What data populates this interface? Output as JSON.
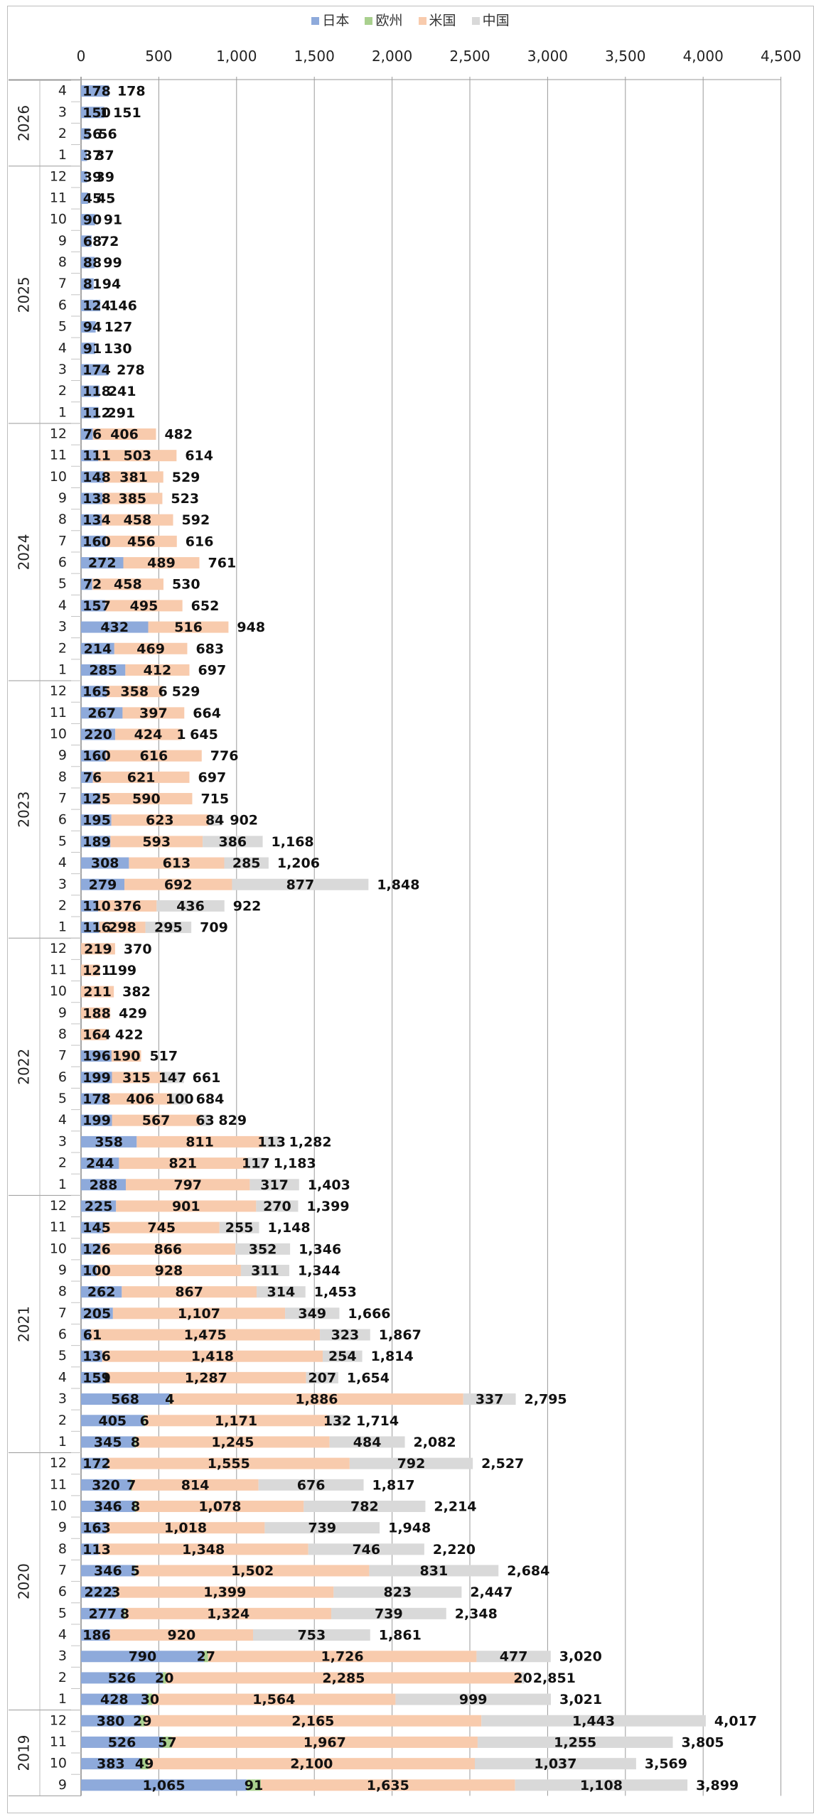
{
  "legend": [
    {
      "name": "日本",
      "color": "#8eaadb"
    },
    {
      "name": "欧州",
      "color": "#a9d08e"
    },
    {
      "name": "米国",
      "color": "#f8cbad"
    },
    {
      "name": "中国",
      "color": "#d9d9d9"
    }
  ],
  "chart_data": {
    "type": "bar",
    "orientation": "horizontal",
    "stacked": true,
    "xlim": [
      0,
      4500
    ],
    "xticks": [
      "0",
      "500",
      "1,000",
      "1,500",
      "2,000",
      "2,500",
      "3,000",
      "3,500",
      "4,000",
      "4,500"
    ],
    "grid": true,
    "legend_position": "top",
    "series_names": [
      "日本",
      "欧州",
      "米国",
      "中国"
    ],
    "years": [
      {
        "year": "2026",
        "rows": [
          {
            "m": "4",
            "jp": 178,
            "eu": null,
            "us": null,
            "cn": null,
            "total": "178"
          },
          {
            "m": "3",
            "jp": 150,
            "eu": null,
            "us": 1,
            "cn": null,
            "total": "151"
          },
          {
            "m": "2",
            "jp": 56,
            "eu": null,
            "us": null,
            "cn": null,
            "total": "56"
          },
          {
            "m": "1",
            "jp": 37,
            "eu": null,
            "us": null,
            "cn": null,
            "total": "37"
          }
        ]
      },
      {
        "year": "2025",
        "rows": [
          {
            "m": "12",
            "jp": 39,
            "eu": null,
            "us": null,
            "cn": null,
            "total": "39"
          },
          {
            "m": "11",
            "jp": 45,
            "eu": null,
            "us": null,
            "cn": null,
            "total": "45"
          },
          {
            "m": "10",
            "jp": 90,
            "eu": null,
            "us": null,
            "cn": null,
            "total": "91"
          },
          {
            "m": "9",
            "jp": 68,
            "eu": null,
            "us": null,
            "cn": null,
            "total": "72"
          },
          {
            "m": "8",
            "jp": 88,
            "eu": null,
            "us": null,
            "cn": null,
            "total": "99"
          },
          {
            "m": "7",
            "jp": 81,
            "eu": null,
            "us": null,
            "cn": null,
            "total": "94"
          },
          {
            "m": "6",
            "jp": 124,
            "eu": null,
            "us": null,
            "cn": null,
            "total": "146"
          },
          {
            "m": "5",
            "jp": 94,
            "eu": null,
            "us": null,
            "cn": null,
            "total": "127"
          },
          {
            "m": "4",
            "jp": 91,
            "eu": null,
            "us": null,
            "cn": null,
            "total": "130"
          },
          {
            "m": "3",
            "jp": 174,
            "eu": null,
            "us": null,
            "cn": null,
            "total": "278"
          },
          {
            "m": "2",
            "jp": 118,
            "eu": null,
            "us": null,
            "cn": null,
            "total": "241"
          },
          {
            "m": "1",
            "jp": 112,
            "eu": null,
            "us": null,
            "cn": null,
            "total": "291"
          }
        ]
      },
      {
        "year": "2024",
        "rows": [
          {
            "m": "12",
            "jp": 76,
            "eu": null,
            "us": 406,
            "cn": null,
            "total": "482"
          },
          {
            "m": "11",
            "jp": 111,
            "eu": null,
            "us": 503,
            "cn": null,
            "total": "614"
          },
          {
            "m": "10",
            "jp": 148,
            "eu": null,
            "us": 381,
            "cn": null,
            "total": "529"
          },
          {
            "m": "9",
            "jp": 138,
            "eu": null,
            "us": 385,
            "cn": null,
            "total": "523"
          },
          {
            "m": "8",
            "jp": 134,
            "eu": null,
            "us": 458,
            "cn": null,
            "total": "592"
          },
          {
            "m": "7",
            "jp": 160,
            "eu": null,
            "us": 456,
            "cn": null,
            "total": "616"
          },
          {
            "m": "6",
            "jp": 272,
            "eu": null,
            "us": 489,
            "cn": null,
            "total": "761"
          },
          {
            "m": "5",
            "jp": 72,
            "eu": null,
            "us": 458,
            "cn": null,
            "total": "530"
          },
          {
            "m": "4",
            "jp": 157,
            "eu": null,
            "us": 495,
            "cn": null,
            "total": "652"
          },
          {
            "m": "3",
            "jp": 432,
            "eu": null,
            "us": 516,
            "cn": null,
            "total": "948"
          },
          {
            "m": "2",
            "jp": 214,
            "eu": null,
            "us": 469,
            "cn": null,
            "total": "683"
          },
          {
            "m": "1",
            "jp": 285,
            "eu": null,
            "us": 412,
            "cn": null,
            "total": "697"
          }
        ]
      },
      {
        "year": "2023",
        "rows": [
          {
            "m": "12",
            "jp": 165,
            "eu": null,
            "us": 358,
            "cn": 6,
            "total": "529"
          },
          {
            "m": "11",
            "jp": 267,
            "eu": null,
            "us": 397,
            "cn": null,
            "total": "664"
          },
          {
            "m": "10",
            "jp": 220,
            "eu": null,
            "us": 424,
            "cn": 1,
            "total": "645"
          },
          {
            "m": "9",
            "jp": 160,
            "eu": null,
            "us": 616,
            "cn": null,
            "total": "776"
          },
          {
            "m": "8",
            "jp": 76,
            "eu": null,
            "us": 621,
            "cn": null,
            "total": "697"
          },
          {
            "m": "7",
            "jp": 125,
            "eu": null,
            "us": 590,
            "cn": null,
            "total": "715"
          },
          {
            "m": "6",
            "jp": 195,
            "eu": null,
            "us": 623,
            "cn": 84,
            "total": "902"
          },
          {
            "m": "5",
            "jp": 189,
            "eu": null,
            "us": 593,
            "cn": 386,
            "total": "1,168"
          },
          {
            "m": "4",
            "jp": 308,
            "eu": null,
            "us": 613,
            "cn": 285,
            "total": "1,206"
          },
          {
            "m": "3",
            "jp": 279,
            "eu": null,
            "us": 692,
            "cn": 877,
            "total": "1,848"
          },
          {
            "m": "2",
            "jp": 110,
            "eu": null,
            "us": 376,
            "cn": 436,
            "total": "922"
          },
          {
            "m": "1",
            "jp": 116,
            "eu": null,
            "us": 298,
            "cn": 295,
            "total": "709"
          }
        ]
      },
      {
        "year": "2022",
        "rows": [
          {
            "m": "12",
            "jp": null,
            "eu": null,
            "us": 219,
            "cn": null,
            "total": "370"
          },
          {
            "m": "11",
            "jp": null,
            "eu": null,
            "us": 121,
            "cn": null,
            "total": "199"
          },
          {
            "m": "10",
            "jp": null,
            "eu": null,
            "us": 211,
            "cn": null,
            "total": "382"
          },
          {
            "m": "9",
            "jp": null,
            "eu": null,
            "us": 188,
            "cn": null,
            "total": "429"
          },
          {
            "m": "8",
            "jp": null,
            "eu": null,
            "us": 164,
            "cn": null,
            "total": "422"
          },
          {
            "m": "7",
            "jp": 196,
            "eu": null,
            "us": 190,
            "cn": null,
            "total": "517"
          },
          {
            "m": "6",
            "jp": 199,
            "eu": null,
            "us": 315,
            "cn": 147,
            "total": "661"
          },
          {
            "m": "5",
            "jp": 178,
            "eu": null,
            "us": 406,
            "cn": 100,
            "total": "684"
          },
          {
            "m": "4",
            "jp": 199,
            "eu": null,
            "us": 567,
            "cn": 63,
            "total": "829"
          },
          {
            "m": "3",
            "jp": 358,
            "eu": null,
            "us": 811,
            "cn": 113,
            "total": "1,282"
          },
          {
            "m": "2",
            "jp": 244,
            "eu": null,
            "us": 821,
            "cn": 117,
            "total": "1,183"
          },
          {
            "m": "1",
            "jp": 288,
            "eu": null,
            "us": 797,
            "cn": 317,
            "total": "1,403"
          }
        ]
      },
      {
        "year": "2021",
        "rows": [
          {
            "m": "12",
            "jp": 225,
            "eu": null,
            "us": 901,
            "cn": 270,
            "total": "1,399"
          },
          {
            "m": "11",
            "jp": 145,
            "eu": null,
            "us": 745,
            "cn": 255,
            "total": "1,148"
          },
          {
            "m": "10",
            "jp": 126,
            "eu": null,
            "us": 866,
            "cn": 352,
            "total": "1,346"
          },
          {
            "m": "9",
            "jp": 100,
            "eu": null,
            "us": 928,
            "cn": 311,
            "total": "1,344"
          },
          {
            "m": "8",
            "jp": 262,
            "eu": null,
            "us": 867,
            "cn": 314,
            "total": "1,453"
          },
          {
            "m": "7",
            "jp": 205,
            "eu": null,
            "us": 1107,
            "cn": 349,
            "total": "1,666"
          },
          {
            "m": "6",
            "jp": 61,
            "eu": null,
            "us": 1475,
            "cn": 323,
            "total": "1,867"
          },
          {
            "m": "5",
            "jp": 136,
            "eu": null,
            "us": 1418,
            "cn": 254,
            "total": "1,814"
          },
          {
            "m": "4",
            "jp": 159,
            "eu": 1,
            "us": 1287,
            "cn": 207,
            "total": "1,654"
          },
          {
            "m": "3",
            "jp": 568,
            "eu": 4,
            "us": 1886,
            "cn": 337,
            "total": "2,795"
          },
          {
            "m": "2",
            "jp": 405,
            "eu": 6,
            "us": 1171,
            "cn": 132,
            "total": "1,714"
          },
          {
            "m": "1",
            "jp": 345,
            "eu": 8,
            "us": 1245,
            "cn": 484,
            "total": "2,082"
          }
        ]
      },
      {
        "year": "2020",
        "rows": [
          {
            "m": "12",
            "jp": 172,
            "eu": null,
            "us": 1555,
            "cn": 792,
            "total": "2,527"
          },
          {
            "m": "11",
            "jp": 320,
            "eu": 7,
            "us": 814,
            "cn": 676,
            "total": "1,817"
          },
          {
            "m": "10",
            "jp": 346,
            "eu": 8,
            "us": 1078,
            "cn": 782,
            "total": "2,214"
          },
          {
            "m": "9",
            "jp": 163,
            "eu": null,
            "us": 1018,
            "cn": 739,
            "total": "1,948"
          },
          {
            "m": "8",
            "jp": 113,
            "eu": null,
            "us": 1348,
            "cn": 746,
            "total": "2,220"
          },
          {
            "m": "7",
            "jp": 346,
            "eu": 5,
            "us": 1502,
            "cn": 831,
            "total": "2,684"
          },
          {
            "m": "6",
            "jp": 222,
            "eu": 3,
            "us": 1399,
            "cn": 823,
            "total": "2,447"
          },
          {
            "m": "5",
            "jp": 277,
            "eu": 8,
            "us": 1324,
            "cn": 739,
            "total": "2,348"
          },
          {
            "m": "4",
            "jp": 186,
            "eu": null,
            "us": 920,
            "cn": 753,
            "total": "1,861"
          },
          {
            "m": "3",
            "jp": 790,
            "eu": 27,
            "us": 1726,
            "cn": 477,
            "total": "3,020"
          },
          {
            "m": "2",
            "jp": 526,
            "eu": 20,
            "us": 2285,
            "cn": 20,
            "total": "2,851"
          },
          {
            "m": "1",
            "jp": 428,
            "eu": 30,
            "us": 1564,
            "cn": 999,
            "total": "3,021"
          }
        ]
      },
      {
        "year": "2019",
        "rows": [
          {
            "m": "12",
            "jp": 380,
            "eu": 29,
            "us": 2165,
            "cn": 1443,
            "total": "4,017"
          },
          {
            "m": "11",
            "jp": 526,
            "eu": 57,
            "us": 1967,
            "cn": 1255,
            "total": "3,805"
          },
          {
            "m": "10",
            "jp": 383,
            "eu": 49,
            "us": 2100,
            "cn": 1037,
            "total": "3,569"
          },
          {
            "m": "9",
            "jp": 1065,
            "eu": 91,
            "us": 1635,
            "cn": 1108,
            "total": "3,899"
          }
        ]
      }
    ]
  }
}
